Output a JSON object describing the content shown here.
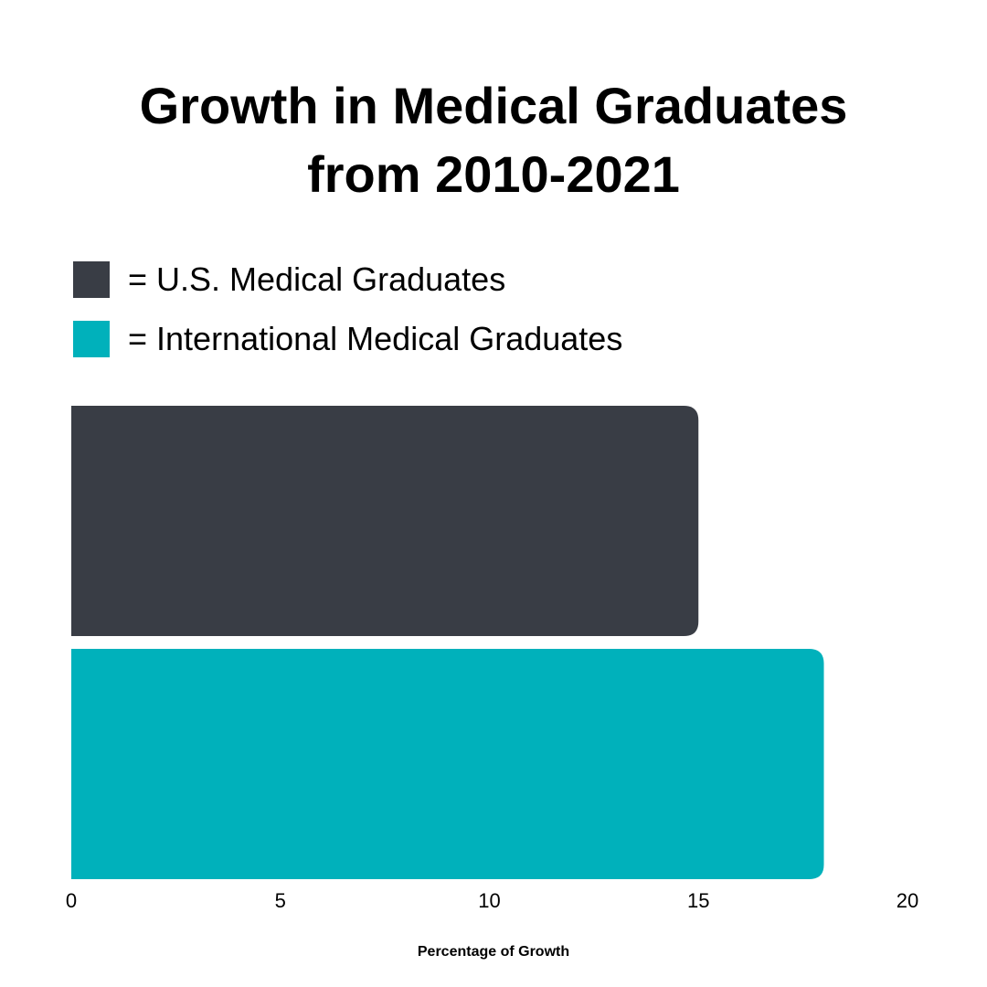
{
  "chart_data": {
    "type": "bar",
    "orientation": "horizontal",
    "title_line1": "Growth in Medical Graduates",
    "title_line2": "from 2010-2021",
    "xlabel": "Percentage of Growth",
    "xlim": [
      0,
      20
    ],
    "xticks": [
      "0",
      "5",
      "10",
      "15",
      "20"
    ],
    "grid": false,
    "legend_position": "top-left",
    "series": [
      {
        "name": "= U.S. Medical Graduates",
        "value": 15,
        "color": "#393d45"
      },
      {
        "name": "= International Medical Graduates",
        "value": 18,
        "color": "#00b1bb"
      }
    ]
  }
}
